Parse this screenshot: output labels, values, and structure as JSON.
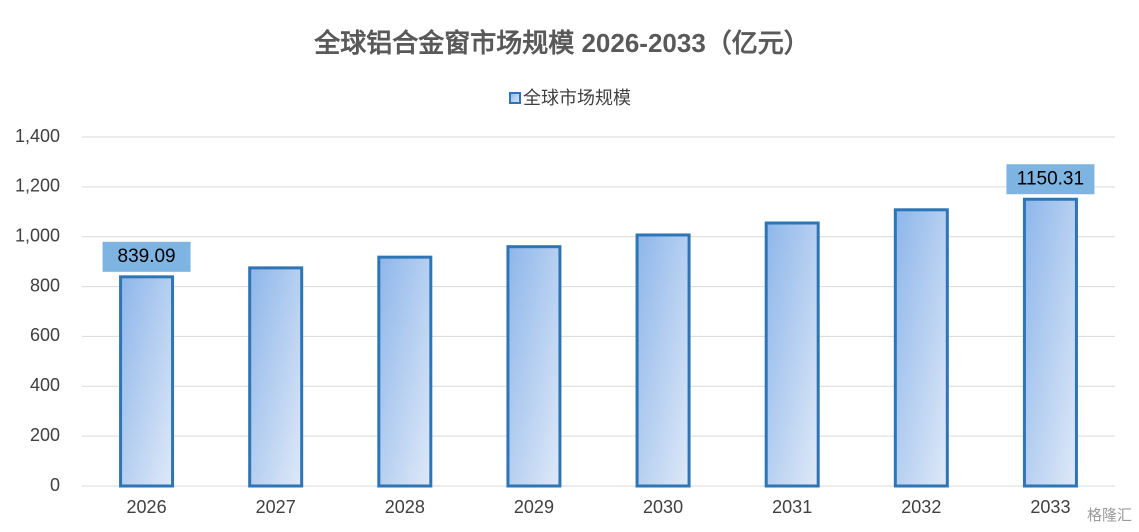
{
  "chart_data": {
    "type": "bar",
    "title": "全球铝合金窗市场规模 2026-2033（亿元）",
    "categories": [
      "2026",
      "2027",
      "2028",
      "2029",
      "2030",
      "2031",
      "2032",
      "2033"
    ],
    "series": [
      {
        "name": "全球市场规模",
        "color": "#2e75b6",
        "values": [
          839.09,
          875,
          918,
          960,
          1007,
          1055,
          1108,
          1150.31
        ],
        "value_labels": [
          "839.09",
          null,
          null,
          null,
          null,
          null,
          null,
          "1150.31"
        ]
      }
    ],
    "ylim": [
      0,
      1400
    ],
    "yticks": [
      0,
      200,
      400,
      600,
      800,
      {
        "value": 1000,
        "label": "1,000"
      },
      {
        "value": 1200,
        "label": "1,200"
      },
      {
        "value": 1400,
        "label": "1,400"
      }
    ],
    "grid": true,
    "legend": "top",
    "watermark": "格隆汇"
  }
}
